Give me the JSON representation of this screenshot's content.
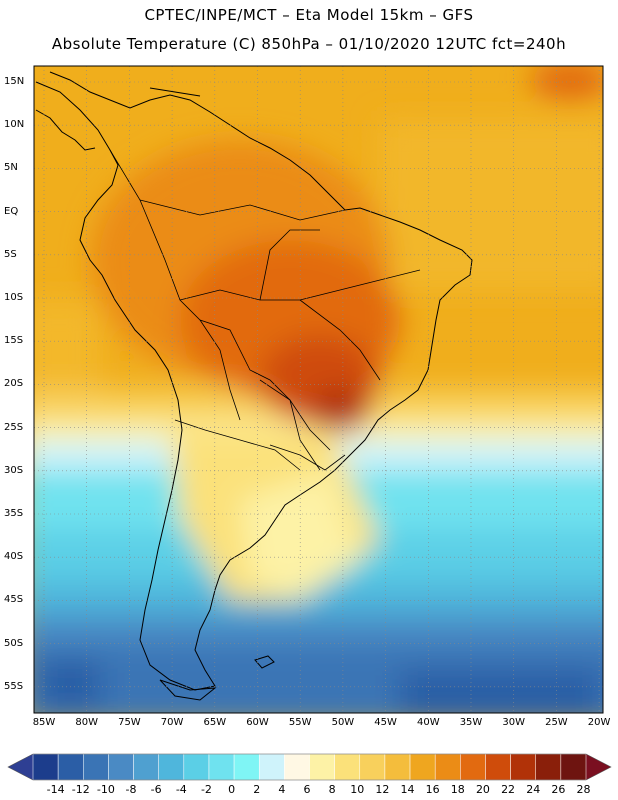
{
  "title": {
    "line1": "CPTEC/INPE/MCT –  Eta Model 15km – GFS",
    "line2": "Absolute Temperature (C) 850hPa – 01/10/2020 12UTC fct=240h"
  },
  "lat_labels": [
    "15N",
    "10N",
    "5N",
    "EQ",
    "5S",
    "10S",
    "15S",
    "20S",
    "25S",
    "30S",
    "35S",
    "40S",
    "45S",
    "50S",
    "55S"
  ],
  "lon_labels": [
    "85W",
    "80W",
    "75W",
    "70W",
    "65W",
    "60W",
    "55W",
    "50W",
    "45W",
    "40W",
    "35W",
    "30W",
    "25W",
    "20W"
  ],
  "colorbar": {
    "labels": [
      "-14",
      "-12",
      "-10",
      "-8",
      "-6",
      "-4",
      "-2",
      "0",
      "2",
      "4",
      "6",
      "8",
      "10",
      "12",
      "14",
      "16",
      "18",
      "20",
      "22",
      "24",
      "26",
      "28"
    ],
    "colors": [
      "#1c3d8c",
      "#2b5ea6",
      "#3a74b5",
      "#4a8ac4",
      "#4fa0d0",
      "#4fb6dc",
      "#5bcfe6",
      "#6fe2ef",
      "#7ff5f5",
      "#cff3fb",
      "#fff8e4",
      "#fdf2a6",
      "#fbe17a",
      "#f8d05c",
      "#f4bd3c",
      "#efa61f",
      "#eb8c16",
      "#e26a10",
      "#cf4c0b",
      "#b13208",
      "#8a1f0a",
      "#6e1410"
    ],
    "under_color": "#2e3f93",
    "over_color": "#7a0f20"
  },
  "colors": {
    "land_outline": "#000000",
    "grid": "#888888",
    "ocean_warm": "#f0ae1c"
  }
}
